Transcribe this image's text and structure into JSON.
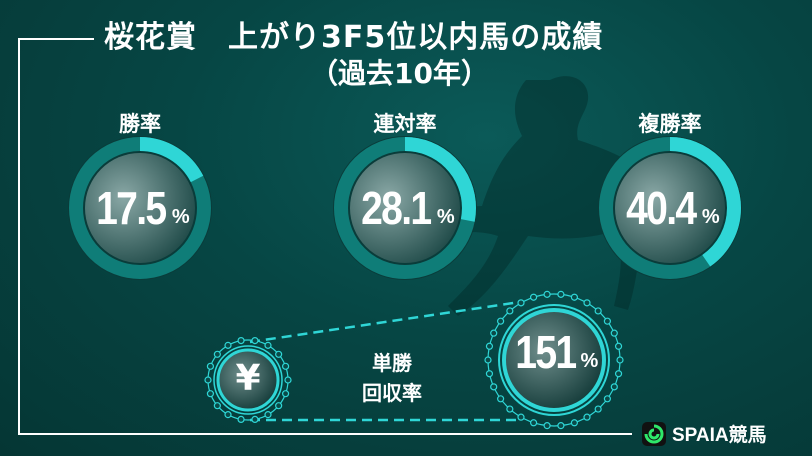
{
  "title": "桜花賞　上がり3F5位以内馬の成績",
  "subtitle": "（過去10年）",
  "stats": [
    {
      "label": "勝率",
      "value": "17.5",
      "unit": "%",
      "fraction": 0.175
    },
    {
      "label": "連対率",
      "value": "28.1",
      "unit": "%",
      "fraction": 0.281
    },
    {
      "label": "複勝率",
      "value": "40.4",
      "unit": "%",
      "fraction": 0.404
    }
  ],
  "recovery": {
    "label_line1": "単勝",
    "label_line2": "回収率",
    "currency_symbol": "¥",
    "value": "151",
    "unit": "%"
  },
  "brand": {
    "name": "SPAIA競馬",
    "logo_color": "#2ee86a"
  },
  "colors": {
    "accent": "#2fd6d6",
    "background": "#064644"
  }
}
